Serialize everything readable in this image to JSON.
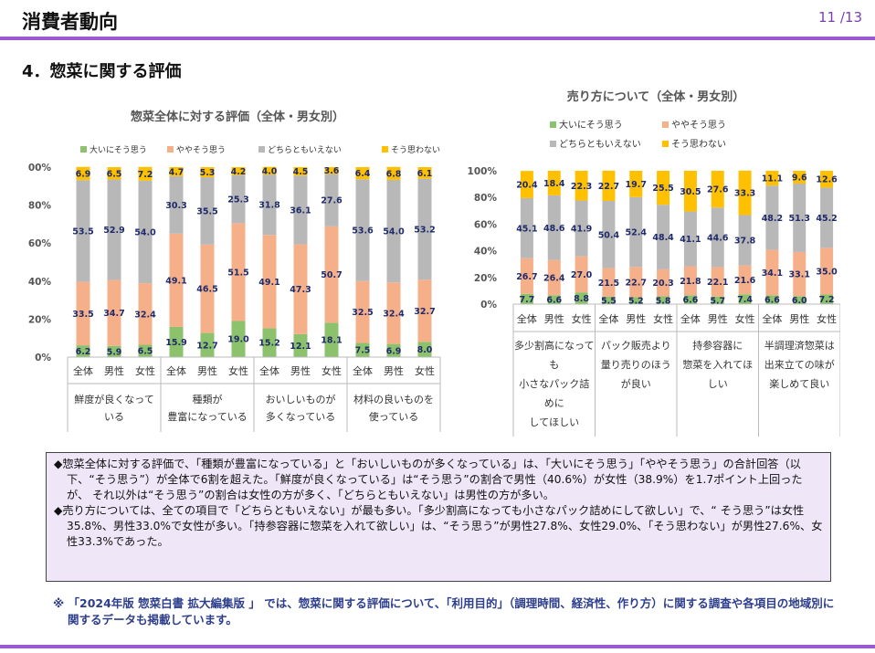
{
  "header": {
    "title": "消費者動向",
    "page": "11 /13"
  },
  "section": {
    "title": "4．惣菜に関する評価"
  },
  "chart_data": [
    {
      "type": "bar",
      "stacked": true,
      "title": "惣菜全体に対する評価（全体・男女別）",
      "legend_position": "top",
      "ylim": [
        0,
        100
      ],
      "yticks": [
        "0%",
        "20%",
        "40%",
        "60%",
        "80%",
        "100%"
      ],
      "grid": false,
      "sub_labels": [
        "全体",
        "男性",
        "女性"
      ],
      "groups": [
        "鮮度が良くなって\nいる",
        "種類が\n豊富になっている",
        "おいしいものが\n多くなっている",
        "材料の良いものを\n使っている"
      ],
      "categories": [
        "鮮度が良くなっている・全体",
        "鮮度が良くなっている・男性",
        "鮮度が良くなっている・女性",
        "種類が豊富になっている・全体",
        "種類が豊富になっている・男性",
        "種類が豊富になっている・女性",
        "おいしいものが多くなっている・全体",
        "おいしいものが多くなっている・男性",
        "おいしいものが多くなっている・女性",
        "材料の良いものを使っている・全体",
        "材料の良いものを使っている・男性",
        "材料の良いものを使っている・女性"
      ],
      "series": [
        {
          "name": "大いにそう思う",
          "color": "#8cc26b",
          "values": [
            6.2,
            5.9,
            6.5,
            15.9,
            12.7,
            19.0,
            15.2,
            12.1,
            18.1,
            7.5,
            6.9,
            8.0
          ]
        },
        {
          "name": "ややそう思う",
          "color": "#f5b08a",
          "values": [
            33.5,
            34.7,
            32.4,
            49.1,
            46.5,
            51.5,
            49.1,
            47.3,
            50.7,
            32.5,
            32.4,
            32.7
          ]
        },
        {
          "name": "どちらともいえない",
          "color": "#b8b8b8",
          "values": [
            53.5,
            52.9,
            54.0,
            30.3,
            35.5,
            25.3,
            31.8,
            36.1,
            27.6,
            53.6,
            54.0,
            53.2
          ]
        },
        {
          "name": "そう思わない",
          "color": "#ffc000",
          "values": [
            6.9,
            6.5,
            7.2,
            4.7,
            5.3,
            4.2,
            4.0,
            4.5,
            3.6,
            6.4,
            6.8,
            6.1
          ]
        }
      ]
    },
    {
      "type": "bar",
      "stacked": true,
      "title": "売り方について（全体・男女別）",
      "legend_position": "top",
      "ylim": [
        0,
        100
      ],
      "yticks": [
        "0%",
        "20%",
        "40%",
        "60%",
        "80%",
        "100%"
      ],
      "grid": false,
      "sub_labels": [
        "全体",
        "男性",
        "女性"
      ],
      "groups": [
        "多少割高になって\nも\n小さなパック詰\nめに\nしてほしい",
        "パック販売より\n量り売りのほう\nが良い",
        "持参容器に\n惣菜を入れてほ\nしい",
        "半調理済惣菜は\n出来立ての味が\n楽しめて良い"
      ],
      "categories": [
        "小さなパック詰め・全体",
        "小さなパック詰め・男性",
        "小さなパック詰め・女性",
        "量り売り・全体",
        "量り売り・男性",
        "量り売り・女性",
        "持参容器・全体",
        "持参容器・男性",
        "持参容器・女性",
        "半調理済惣菜・全体",
        "半調理済惣菜・男性",
        "半調理済惣菜・女性"
      ],
      "series": [
        {
          "name": "大いにそう思う",
          "color": "#8cc26b",
          "values": [
            7.7,
            6.6,
            8.8,
            5.5,
            5.2,
            5.8,
            6.6,
            5.7,
            7.4,
            6.6,
            6.0,
            7.2
          ]
        },
        {
          "name": "ややそう思う",
          "color": "#f5b08a",
          "values": [
            26.7,
            26.4,
            27.0,
            21.5,
            22.7,
            20.3,
            21.8,
            22.1,
            21.6,
            34.1,
            33.1,
            35.0
          ]
        },
        {
          "name": "どちらともいえない",
          "color": "#b8b8b8",
          "values": [
            45.1,
            48.6,
            41.9,
            50.4,
            52.4,
            48.4,
            41.1,
            44.6,
            37.8,
            48.2,
            51.3,
            45.2
          ]
        },
        {
          "name": "そう思わない",
          "color": "#ffc000",
          "values": [
            20.4,
            18.4,
            22.3,
            22.7,
            19.7,
            25.5,
            30.5,
            27.6,
            33.3,
            11.1,
            9.6,
            12.6
          ]
        }
      ]
    }
  ],
  "summary": {
    "para1": "◆惣菜全体に対する評価で、「種類が豊富になっている」と「おいしいものが多くなっている」は、「大いにそう思う」「ややそう思う」の合計回答（以下、“そう思う”）が全体で6割を超えた。「鮮度が良くなっている」は“そう思う”の割合で男性（40.6%）が女性（38.9%）を1.7ポイント上回ったが、 それ以外は“そう思う”の割合は女性の方が多く、「どちらともいえない」は男性の方が多い。",
    "para2": "◆売り方については、全ての項目で「どちらともいえない」が最も多い。「多少割高になっても小さなパック詰めにして欲しい」で、“ そう思う”は女性35.8%、男性33.0%で女性が多い。「持参容器に惣菜を入れて欲しい」は、“そう思う”が男性27.8%、女性29.0%、「そう思わない」が男性27.6%、女性33.3%であった。"
  },
  "note": {
    "text": "※ 「2024年版 惣菜白書 拡大編集版 」 では、惣菜に関する評価について、「利用目的」（調理時間、経済性、作り方）に関する調査や各項目の地域別に関するデータも掲載しています。"
  }
}
